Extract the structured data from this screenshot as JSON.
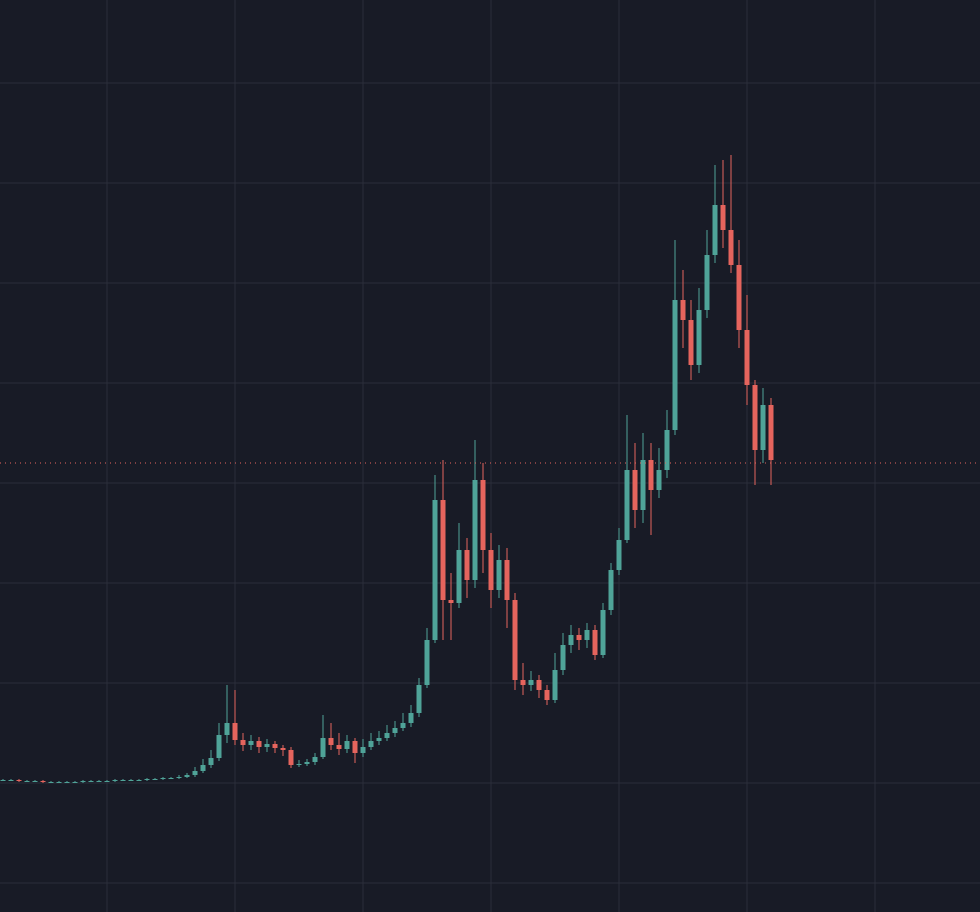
{
  "chart_data": {
    "type": "candlestick",
    "x": [
      0,
      1,
      2,
      3,
      4,
      5,
      6,
      7,
      8,
      9,
      10,
      11,
      12,
      13,
      14,
      15,
      16,
      17,
      18,
      19,
      20,
      21,
      22,
      23,
      24,
      25,
      26,
      27,
      28,
      29,
      30,
      31,
      32,
      33,
      34,
      35,
      36,
      37,
      38,
      39,
      40,
      41,
      42,
      43,
      44,
      45,
      46,
      47,
      48,
      49,
      50,
      51,
      52,
      53,
      54,
      55,
      56,
      57,
      58,
      59,
      60,
      61,
      62,
      63,
      64,
      65,
      66,
      67,
      68,
      69,
      70,
      71,
      72,
      73,
      74,
      75,
      76,
      77,
      78,
      79,
      80,
      81,
      82,
      83,
      84,
      85,
      86,
      87,
      88,
      89,
      90,
      91,
      92,
      93,
      94,
      95,
      96
    ],
    "open": [
      1.03,
      1.03,
      1.03,
      1.02,
      1.02,
      1.02,
      1.01,
      1.01,
      1.01,
      1.01,
      1.01,
      1.02,
      1.02,
      1.02,
      1.02,
      1.03,
      1.03,
      1.03,
      1.03,
      1.04,
      1.04,
      1.05,
      1.05,
      1.06,
      1.08,
      1.12,
      1.18,
      1.25,
      1.48,
      1.6,
      1.43,
      1.38,
      1.42,
      1.36,
      1.39,
      1.35,
      1.33,
      1.18,
      1.19,
      1.21,
      1.26,
      1.45,
      1.38,
      1.34,
      1.42,
      1.3,
      1.36,
      1.42,
      1.45,
      1.5,
      1.55,
      1.6,
      1.7,
      1.98,
      2.43,
      3.83,
      2.83,
      2.8,
      3.33,
      3.03,
      4.03,
      3.33,
      2.93,
      3.23,
      2.83,
      2.03,
      1.98,
      2.03,
      1.93,
      1.83,
      2.13,
      2.38,
      2.48,
      2.43,
      2.53,
      2.28,
      2.73,
      3.13,
      3.43,
      4.13,
      3.73,
      4.23,
      3.93,
      4.13,
      4.53,
      5.83,
      5.63,
      5.18,
      5.73,
      6.28,
      6.78,
      6.53,
      6.18,
      5.53,
      4.98,
      4.33,
      4.78
    ],
    "high": [
      1.04,
      1.04,
      1.04,
      1.03,
      1.03,
      1.03,
      1.02,
      1.02,
      1.02,
      1.02,
      1.03,
      1.03,
      1.03,
      1.03,
      1.04,
      1.04,
      1.04,
      1.04,
      1.05,
      1.05,
      1.06,
      1.06,
      1.08,
      1.1,
      1.16,
      1.24,
      1.33,
      1.6,
      1.98,
      1.93,
      1.5,
      1.48,
      1.46,
      1.44,
      1.42,
      1.38,
      1.36,
      1.23,
      1.24,
      1.3,
      1.68,
      1.6,
      1.5,
      1.48,
      1.45,
      1.44,
      1.5,
      1.52,
      1.58,
      1.62,
      1.7,
      1.78,
      2.05,
      2.55,
      4.08,
      4.23,
      3.1,
      3.6,
      3.45,
      4.43,
      4.2,
      3.5,
      3.38,
      3.35,
      2.9,
      2.2,
      2.12,
      2.08,
      1.98,
      2.3,
      2.5,
      2.58,
      2.55,
      2.6,
      2.58,
      2.8,
      3.2,
      3.55,
      4.68,
      4.4,
      4.5,
      4.4,
      4.35,
      4.73,
      6.43,
      6.13,
      5.83,
      5.95,
      6.53,
      7.18,
      7.23,
      7.28,
      6.43,
      5.88,
      5.03,
      4.95,
      4.85
    ],
    "low": [
      1.02,
      1.02,
      1.01,
      1.01,
      1.01,
      1.0,
      1.0,
      1.0,
      1.0,
      1.0,
      1.0,
      1.01,
      1.01,
      1.01,
      1.01,
      1.02,
      1.02,
      1.02,
      1.02,
      1.03,
      1.03,
      1.04,
      1.04,
      1.05,
      1.06,
      1.1,
      1.15,
      1.22,
      1.4,
      1.38,
      1.32,
      1.33,
      1.3,
      1.31,
      1.3,
      1.27,
      1.15,
      1.16,
      1.17,
      1.18,
      1.24,
      1.33,
      1.28,
      1.3,
      1.2,
      1.26,
      1.33,
      1.38,
      1.42,
      1.46,
      1.52,
      1.56,
      1.66,
      1.95,
      2.4,
      2.43,
      2.43,
      2.75,
      2.85,
      2.95,
      3.1,
      2.75,
      2.85,
      2.55,
      1.93,
      1.88,
      1.92,
      1.85,
      1.78,
      1.8,
      2.08,
      2.3,
      2.33,
      2.35,
      2.23,
      2.25,
      2.68,
      3.08,
      3.4,
      3.55,
      3.6,
      3.48,
      3.85,
      4.05,
      4.48,
      5.35,
      5.03,
      5.1,
      5.65,
      6.2,
      6.35,
      6.1,
      5.35,
      4.78,
      3.98,
      4.2,
      3.98
    ],
    "close": [
      1.03,
      1.03,
      1.02,
      1.02,
      1.02,
      1.01,
      1.01,
      1.01,
      1.01,
      1.01,
      1.02,
      1.02,
      1.02,
      1.02,
      1.03,
      1.03,
      1.03,
      1.03,
      1.04,
      1.04,
      1.05,
      1.05,
      1.06,
      1.08,
      1.12,
      1.18,
      1.25,
      1.48,
      1.6,
      1.43,
      1.38,
      1.42,
      1.36,
      1.39,
      1.35,
      1.33,
      1.18,
      1.19,
      1.21,
      1.26,
      1.45,
      1.38,
      1.34,
      1.42,
      1.3,
      1.36,
      1.42,
      1.45,
      1.5,
      1.55,
      1.6,
      1.7,
      1.98,
      2.43,
      3.83,
      2.83,
      2.8,
      3.33,
      3.03,
      4.03,
      3.33,
      2.93,
      3.23,
      2.83,
      2.03,
      1.98,
      2.03,
      1.93,
      1.83,
      2.13,
      2.38,
      2.48,
      2.43,
      2.53,
      2.28,
      2.73,
      3.13,
      3.43,
      4.13,
      3.73,
      4.23,
      3.93,
      4.13,
      4.53,
      5.83,
      5.63,
      5.18,
      5.73,
      6.28,
      6.78,
      6.53,
      6.18,
      5.53,
      4.98,
      4.33,
      4.78,
      4.23
    ],
    "up_color": "#4fa398",
    "down_color": "#e5645d",
    "price_line": 4.2,
    "xlim": [
      -0.375,
      122.125
    ],
    "xticks": [
      13,
      29,
      45,
      61,
      77,
      93,
      109
    ],
    "ylim": [
      -0.29,
      8.83
    ],
    "yticks": [
      0,
      1,
      2,
      3,
      4,
      5,
      6,
      7,
      8
    ],
    "grid": true
  }
}
